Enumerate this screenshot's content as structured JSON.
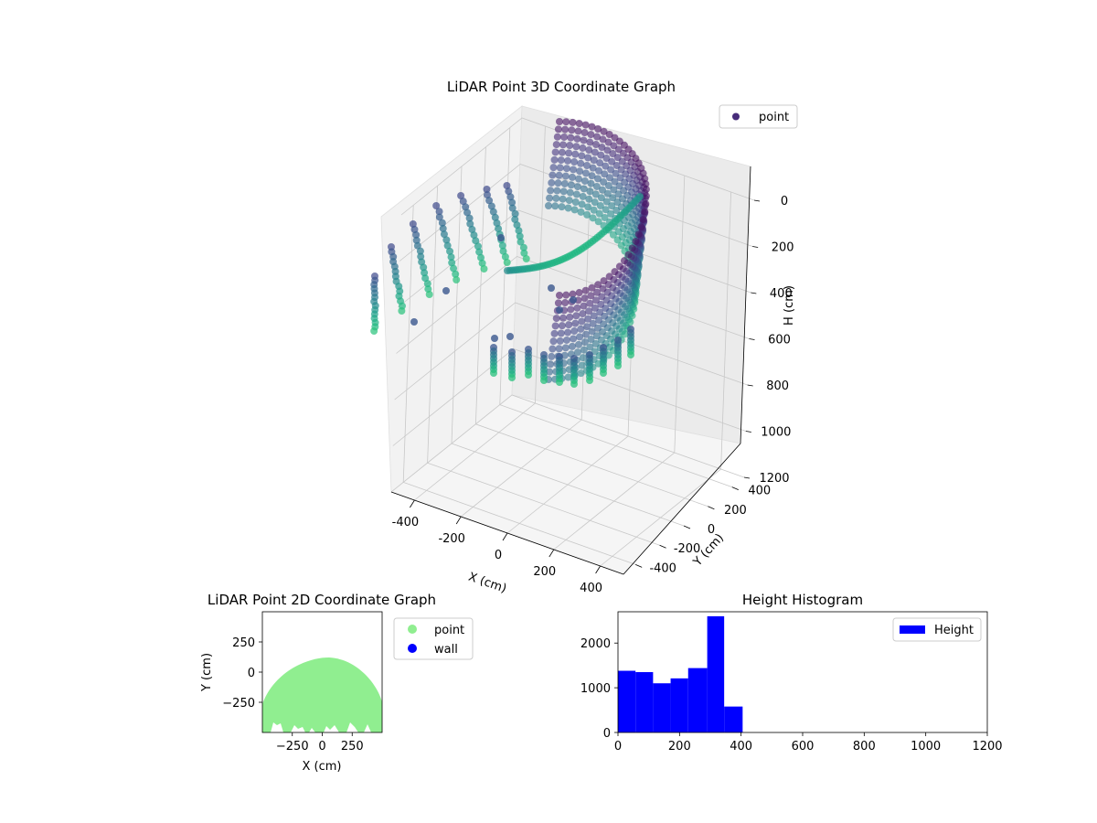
{
  "chart_data": [
    {
      "type": "scatter",
      "projection": "3d",
      "title": "LiDAR Point 3D Coordinate Graph",
      "xlabel": "X (cm)",
      "ylabel": "Y (cm)",
      "zlabel": "H (cm)",
      "xlim": [
        -500,
        500
      ],
      "ylim": [
        -500,
        500
      ],
      "zlim": [
        1200,
        0
      ],
      "xticks": [
        "-400",
        "-200",
        "0",
        "200",
        "400"
      ],
      "yticks": [
        "-400",
        "-200",
        "0",
        "200",
        "400"
      ],
      "zticks": [
        "0",
        "200",
        "400",
        "600",
        "800",
        "1000",
        "1200"
      ],
      "legend": {
        "position": "upper right",
        "entries": [
          {
            "name": "point",
            "color": "#472c7a"
          }
        ]
      },
      "colormap": "viridis",
      "grid": true,
      "series": [
        {
          "name": "point",
          "shape": "arc of radius ~450 cm from X -450 to X 450 (Y -450 to 150), heights 0-400 cm; additional lower points at H 500-800",
          "samples": [
            {
              "x": -440,
              "y": -80,
              "h": 350
            },
            {
              "x": -400,
              "y": 20,
              "h": 300
            },
            {
              "x": -300,
              "y": 80,
              "h": 250
            },
            {
              "x": -200,
              "y": 120,
              "h": 200
            },
            {
              "x": -100,
              "y": 140,
              "h": 150
            },
            {
              "x": 0,
              "y": 150,
              "h": 100
            },
            {
              "x": 100,
              "y": 140,
              "h": 50
            },
            {
              "x": 200,
              "y": 110,
              "h": 0
            },
            {
              "x": 300,
              "y": 50,
              "h": 0
            },
            {
              "x": 400,
              "y": -50,
              "h": 0
            },
            {
              "x": 440,
              "y": -200,
              "h": 0
            },
            {
              "x": 420,
              "y": -350,
              "h": 0
            },
            {
              "x": 0,
              "y": -400,
              "h": 600
            },
            {
              "x": 100,
              "y": -420,
              "h": 700
            },
            {
              "x": 200,
              "y": -400,
              "h": 750
            }
          ]
        }
      ]
    },
    {
      "type": "scatter",
      "title": "LiDAR Point 2D Coordinate Graph",
      "xlabel": "X (cm)",
      "ylabel": "Y (cm)",
      "xlim": [
        -500,
        500
      ],
      "ylim": [
        -500,
        500
      ],
      "xticks": [
        "−250",
        "0",
        "250"
      ],
      "yticks": [
        "250",
        "0",
        "−250"
      ],
      "legend": {
        "position": "outside right",
        "entries": [
          {
            "name": "point",
            "color": "#90ee90"
          },
          {
            "name": "wall",
            "color": "#0000ff"
          }
        ]
      },
      "series": [
        {
          "name": "point",
          "color": "#90ee90",
          "region": "filled dome from X -500 to 500, top Y ~110 at X ~50, bottom Y -500"
        },
        {
          "name": "wall",
          "color": "#0000ff",
          "values": []
        }
      ]
    },
    {
      "type": "bar",
      "subtype": "histogram",
      "title": "Height Histogram",
      "xlim": [
        0,
        1200
      ],
      "ylim": [
        0,
        2700
      ],
      "xticks": [
        "0",
        "200",
        "400",
        "600",
        "800",
        "1000",
        "1200"
      ],
      "yticks": [
        "0",
        "1000",
        "2000"
      ],
      "legend": {
        "position": "upper right",
        "entries": [
          {
            "name": "Height",
            "color": "#0000ff"
          }
        ]
      },
      "bins": [
        {
          "x0": 0,
          "x1": 57,
          "count": 1380
        },
        {
          "x0": 57,
          "x1": 114,
          "count": 1350
        },
        {
          "x0": 114,
          "x1": 171,
          "count": 1100
        },
        {
          "x0": 171,
          "x1": 228,
          "count": 1210
        },
        {
          "x0": 228,
          "x1": 290,
          "count": 1440
        },
        {
          "x0": 290,
          "x1": 345,
          "count": 2600
        },
        {
          "x0": 345,
          "x1": 405,
          "count": 580
        }
      ]
    }
  ]
}
